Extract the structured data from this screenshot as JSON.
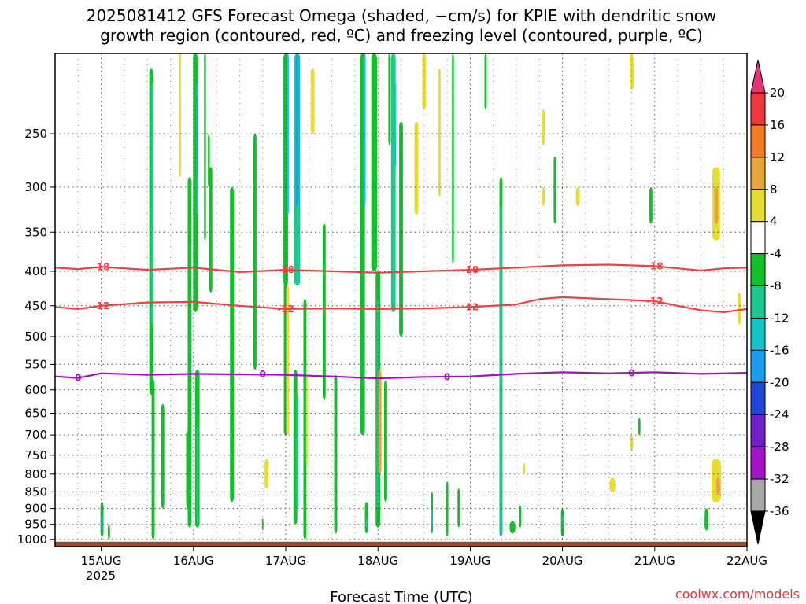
{
  "title_line1": "2025081412 GFS Forecast Omega (shaded, −cm/s) for KPIE with dendritic snow",
  "title_line2": "growth region (contoured, red, ºC) and freezing level (contoured, purple, ºC)",
  "xlabel": "Forecast Time (UTC)",
  "credit": "coolwx.com/models",
  "chart_data": {
    "type": "heatmap",
    "y_scale": "log-pressure (hPa), inverted",
    "ylim": [
      1025,
      190
    ],
    "y_ticks": [
      250,
      300,
      350,
      400,
      450,
      500,
      550,
      600,
      650,
      700,
      750,
      800,
      850,
      900,
      950,
      1000
    ],
    "y_tick_labels": [
      "250",
      "300",
      "350",
      "400",
      "450",
      "500",
      "550",
      "600",
      "650",
      "700",
      "750",
      "800",
      "850",
      "900",
      "950",
      "1000"
    ],
    "x_tick_labels": [
      "15AUG",
      "16AUG",
      "17AUG",
      "18AUG",
      "19AUG",
      "20AUG",
      "21AUG",
      "22AUG"
    ],
    "x_year_label": "2025",
    "xlim_hours": [
      -12,
      168
    ],
    "grid": true,
    "colorbar": {
      "labels": [
        "20",
        "16",
        "12",
        "8",
        "4",
        "-4",
        "-8",
        "-12",
        "-16",
        "-20",
        "-24",
        "-28",
        "-32",
        "-36"
      ],
      "colors": [
        "#e8336f",
        "#f0383c",
        "#ef7d28",
        "#e6a43a",
        "#e6dc33",
        "#ffffff",
        "#11c02a",
        "#1bc98e",
        "#12c4c5",
        "#1a9eea",
        "#2046d8",
        "#7020c6",
        "#a314c8",
        "#a8a8a8",
        "#000000"
      ]
    },
    "contours": [
      {
        "name": "dendritic -18",
        "color": "#f04040",
        "label": "-18",
        "points": [
          [
            -12,
            395
          ],
          [
            -6,
            397
          ],
          [
            0,
            394
          ],
          [
            12,
            398
          ],
          [
            24,
            395
          ],
          [
            36,
            401
          ],
          [
            48,
            398
          ],
          [
            60,
            400
          ],
          [
            72,
            402
          ],
          [
            84,
            400
          ],
          [
            96,
            398
          ],
          [
            108,
            395
          ],
          [
            120,
            392
          ],
          [
            132,
            391
          ],
          [
            144,
            393
          ],
          [
            150,
            396
          ],
          [
            156,
            399
          ],
          [
            162,
            396
          ],
          [
            168,
            395
          ]
        ]
      },
      {
        "name": "dendritic -12",
        "color": "#f04040",
        "label": "-12",
        "points": [
          [
            -12,
            452
          ],
          [
            -6,
            455
          ],
          [
            0,
            450
          ],
          [
            12,
            445
          ],
          [
            24,
            444
          ],
          [
            36,
            450
          ],
          [
            48,
            455
          ],
          [
            60,
            454
          ],
          [
            72,
            455
          ],
          [
            84,
            454
          ],
          [
            96,
            452
          ],
          [
            108,
            448
          ],
          [
            114,
            440
          ],
          [
            120,
            437
          ],
          [
            132,
            440
          ],
          [
            144,
            443
          ],
          [
            150,
            450
          ],
          [
            156,
            457
          ],
          [
            162,
            460
          ],
          [
            168,
            455
          ]
        ]
      },
      {
        "name": "freezing level 0",
        "color": "#a010c0",
        "label": "0",
        "points": [
          [
            -12,
            573
          ],
          [
            -6,
            576
          ],
          [
            0,
            567
          ],
          [
            12,
            570
          ],
          [
            24,
            568
          ],
          [
            36,
            569
          ],
          [
            48,
            570
          ],
          [
            60,
            573
          ],
          [
            72,
            577
          ],
          [
            84,
            574
          ],
          [
            96,
            573
          ],
          [
            108,
            568
          ],
          [
            120,
            565
          ],
          [
            132,
            567
          ],
          [
            144,
            565
          ],
          [
            156,
            568
          ],
          [
            168,
            566
          ]
        ]
      }
    ],
    "shading_regions": [
      {
        "h": 0.2,
        "w": 0.8,
        "p1": 880,
        "p2": 990,
        "level": -8
      },
      {
        "h": 0.2,
        "w": 0.4,
        "p1": 920,
        "p2": 970,
        "level": -16
      },
      {
        "h": 2.0,
        "w": 0.6,
        "p1": 950,
        "p2": 1000,
        "level": -4
      },
      {
        "h": 13.0,
        "w": 1.0,
        "p1": 200,
        "p2": 610,
        "level": -8
      },
      {
        "h": 13.2,
        "w": 0.5,
        "p1": 210,
        "p2": 480,
        "level": -12
      },
      {
        "h": 13.5,
        "w": 0.8,
        "p1": 580,
        "p2": 1000,
        "level": -8
      },
      {
        "h": 16.0,
        "w": 0.8,
        "p1": 630,
        "p2": 900,
        "level": -4
      },
      {
        "h": 20.5,
        "w": 0.5,
        "p1": 170,
        "p2": 290,
        "level": 4
      },
      {
        "h": 22.5,
        "w": 0.8,
        "p1": 690,
        "p2": 900,
        "level": -8
      },
      {
        "h": 24.5,
        "w": 1.2,
        "p1": 190,
        "p2": 460,
        "level": -8
      },
      {
        "h": 25.0,
        "w": 0.5,
        "p1": 210,
        "p2": 330,
        "level": -16
      },
      {
        "h": 25.0,
        "w": 0.4,
        "p1": 220,
        "p2": 290,
        "level": -20
      },
      {
        "h": 23.0,
        "w": 1.0,
        "p1": 290,
        "p2": 960,
        "level": -8
      },
      {
        "h": 25.0,
        "w": 1.2,
        "p1": 560,
        "p2": 960,
        "level": -8
      },
      {
        "h": 25.0,
        "w": 0.5,
        "p1": 680,
        "p2": 950,
        "level": -12
      },
      {
        "h": 27.0,
        "w": 0.5,
        "p1": 190,
        "p2": 360,
        "level": -8
      },
      {
        "h": 28.0,
        "w": 0.5,
        "p1": 250,
        "p2": 300,
        "level": -8
      },
      {
        "h": 28.5,
        "w": 0.8,
        "p1": 280,
        "p2": 430,
        "level": -8
      },
      {
        "h": 34.0,
        "w": 1.0,
        "p1": 300,
        "p2": 880,
        "level": -4
      },
      {
        "h": 40.0,
        "w": 0.8,
        "p1": 250,
        "p2": 560,
        "level": -8
      },
      {
        "h": 43.0,
        "w": 1.0,
        "p1": 760,
        "p2": 840,
        "level": 4
      },
      {
        "h": 42.0,
        "w": 0.4,
        "p1": 930,
        "p2": 970,
        "level": -8
      },
      {
        "h": 48.0,
        "w": 1.2,
        "p1": 190,
        "p2": 420,
        "level": -8
      },
      {
        "h": 48.5,
        "w": 0.6,
        "p1": 190,
        "p2": 330,
        "level": -16
      },
      {
        "h": 48.0,
        "w": 1.0,
        "p1": 410,
        "p2": 700,
        "level": -8
      },
      {
        "h": 48.5,
        "w": 0.8,
        "p1": 420,
        "p2": 700,
        "level": 4
      },
      {
        "h": 51.0,
        "w": 1.5,
        "p1": 190,
        "p2": 420,
        "level": -12
      },
      {
        "h": 51.0,
        "w": 0.8,
        "p1": 190,
        "p2": 320,
        "level": -20
      },
      {
        "h": 50.5,
        "w": 1.0,
        "p1": 560,
        "p2": 950,
        "level": -8
      },
      {
        "h": 51.0,
        "w": 0.5,
        "p1": 610,
        "p2": 900,
        "level": -12
      },
      {
        "h": 53.0,
        "w": 0.8,
        "p1": 440,
        "p2": 1000,
        "level": -8
      },
      {
        "h": 53.5,
        "w": 0.4,
        "p1": 570,
        "p2": 780,
        "level": 4
      },
      {
        "h": 55.0,
        "w": 1.0,
        "p1": 200,
        "p2": 250,
        "level": 4
      },
      {
        "h": 58.0,
        "w": 0.8,
        "p1": 340,
        "p2": 620,
        "level": -8
      },
      {
        "h": 61.0,
        "w": 0.8,
        "p1": 570,
        "p2": 980,
        "level": -8
      },
      {
        "h": 68.0,
        "w": 1.2,
        "p1": 190,
        "p2": 700,
        "level": -8
      },
      {
        "h": 68.5,
        "w": 0.6,
        "p1": 190,
        "p2": 320,
        "level": -16
      },
      {
        "h": 69.0,
        "w": 0.8,
        "p1": 880,
        "p2": 980,
        "level": -8
      },
      {
        "h": 69.0,
        "w": 0.3,
        "p1": 930,
        "p2": 960,
        "level": -16
      },
      {
        "h": 71.0,
        "w": 1.5,
        "p1": 190,
        "p2": 400,
        "level": -8
      },
      {
        "h": 72.0,
        "w": 1.2,
        "p1": 400,
        "p2": 960,
        "level": -8
      },
      {
        "h": 72.0,
        "w": 0.6,
        "p1": 440,
        "p2": 900,
        "level": -12
      },
      {
        "h": 72.5,
        "w": 0.8,
        "p1": 560,
        "p2": 800,
        "level": 8
      },
      {
        "h": 74.0,
        "w": 0.8,
        "p1": 580,
        "p2": 880,
        "level": -8
      },
      {
        "h": 76.0,
        "w": 1.2,
        "p1": 190,
        "p2": 460,
        "level": -12
      },
      {
        "h": 76.5,
        "w": 0.5,
        "p1": 210,
        "p2": 280,
        "level": -16
      },
      {
        "h": 75.0,
        "w": 0.6,
        "p1": 190,
        "p2": 260,
        "level": -8
      },
      {
        "h": 78.0,
        "w": 1.0,
        "p1": 240,
        "p2": 500,
        "level": -4
      },
      {
        "h": 82.0,
        "w": 1.0,
        "p1": 240,
        "p2": 330,
        "level": 4
      },
      {
        "h": 84.0,
        "w": 1.0,
        "p1": 190,
        "p2": 230,
        "level": 4
      },
      {
        "h": 86.0,
        "w": 0.6,
        "p1": 850,
        "p2": 980,
        "level": -8
      },
      {
        "h": 86.0,
        "w": 0.4,
        "p1": 900,
        "p2": 960,
        "level": -12
      },
      {
        "h": 88.0,
        "w": 0.6,
        "p1": 200,
        "p2": 310,
        "level": 4
      },
      {
        "h": 90.0,
        "w": 0.6,
        "p1": 820,
        "p2": 990,
        "level": -8
      },
      {
        "h": 91.5,
        "w": 0.5,
        "p1": 190,
        "p2": 390,
        "level": -8
      },
      {
        "h": 93.0,
        "w": 0.6,
        "p1": 840,
        "p2": 960,
        "level": -8
      },
      {
        "h": 100.0,
        "w": 0.6,
        "p1": 190,
        "p2": 230,
        "level": -8
      },
      {
        "h": 104.0,
        "w": 0.8,
        "p1": 290,
        "p2": 990,
        "level": -8
      },
      {
        "h": 104.0,
        "w": 0.5,
        "p1": 320,
        "p2": 990,
        "level": -12
      },
      {
        "h": 104.0,
        "w": 0.3,
        "p1": 350,
        "p2": 980,
        "level": -16
      },
      {
        "h": 107.0,
        "w": 1.5,
        "p1": 940,
        "p2": 980,
        "level": -8
      },
      {
        "h": 109.0,
        "w": 0.6,
        "p1": 890,
        "p2": 960,
        "level": -8
      },
      {
        "h": 110.0,
        "w": 0.6,
        "p1": 770,
        "p2": 800,
        "level": 4
      },
      {
        "h": 115.0,
        "w": 0.8,
        "p1": 230,
        "p2": 260,
        "level": 4
      },
      {
        "h": 115.0,
        "w": 0.8,
        "p1": 300,
        "p2": 320,
        "level": 4
      },
      {
        "h": 118.0,
        "w": 0.6,
        "p1": 270,
        "p2": 340,
        "level": -8
      },
      {
        "h": 120.0,
        "w": 0.8,
        "p1": 900,
        "p2": 990,
        "level": -8
      },
      {
        "h": 120.0,
        "w": 0.4,
        "p1": 920,
        "p2": 960,
        "level": -12
      },
      {
        "h": 124.0,
        "w": 1.0,
        "p1": 300,
        "p2": 320,
        "level": 4
      },
      {
        "h": 133.0,
        "w": 1.5,
        "p1": 810,
        "p2": 850,
        "level": 4
      },
      {
        "h": 138.0,
        "w": 1.0,
        "p1": 190,
        "p2": 215,
        "level": 4
      },
      {
        "h": 140.0,
        "w": 0.6,
        "p1": 660,
        "p2": 700,
        "level": -8
      },
      {
        "h": 138.0,
        "w": 0.8,
        "p1": 700,
        "p2": 740,
        "level": 4
      },
      {
        "h": 143.0,
        "w": 0.8,
        "p1": 300,
        "p2": 340,
        "level": -8
      },
      {
        "h": 160.0,
        "w": 2.0,
        "p1": 280,
        "p2": 360,
        "level": 4
      },
      {
        "h": 160.0,
        "w": 1.0,
        "p1": 300,
        "p2": 340,
        "level": 8
      },
      {
        "h": 160.0,
        "w": 2.5,
        "p1": 760,
        "p2": 880,
        "level": 4
      },
      {
        "h": 160.5,
        "w": 1.0,
        "p1": 810,
        "p2": 860,
        "level": 8
      },
      {
        "h": 157.5,
        "w": 1.0,
        "p1": 900,
        "p2": 970,
        "level": -8
      },
      {
        "h": 157.0,
        "w": 0.4,
        "p1": 930,
        "p2": 960,
        "level": -16
      },
      {
        "h": 166.0,
        "w": 0.8,
        "p1": 430,
        "p2": 480,
        "level": 4
      }
    ],
    "ground_band": {
      "p1": 1008,
      "p2": 1025,
      "color": "#9c4c26"
    }
  }
}
